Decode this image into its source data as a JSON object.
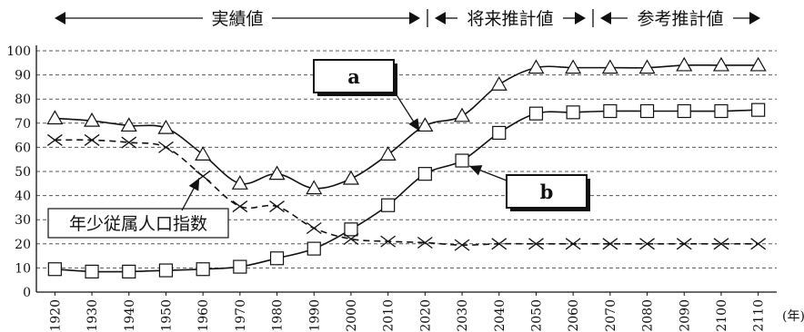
{
  "chart_data": {
    "type": "line",
    "x": [
      1920,
      1930,
      1940,
      1950,
      1960,
      1970,
      1980,
      1990,
      2000,
      2010,
      2020,
      2030,
      2040,
      2050,
      2060,
      2070,
      2080,
      2090,
      2100,
      2110
    ],
    "xlabel": "(年)",
    "ylim": [
      0,
      100
    ],
    "yticks": [
      0,
      10,
      20,
      30,
      40,
      50,
      60,
      70,
      80,
      90,
      100
    ],
    "grid": "horizontal dashed",
    "periods": [
      "実績値",
      "将来推計値",
      "参考推計値"
    ],
    "series": [
      {
        "name": "a",
        "marker": "triangle",
        "style": "solid",
        "values": [
          72,
          71,
          69,
          68,
          57,
          45,
          49,
          43,
          47,
          57,
          69,
          73,
          86,
          93,
          93,
          93,
          93,
          94,
          94,
          94
        ]
      },
      {
        "name": "b",
        "marker": "square",
        "style": "solid",
        "values": [
          9.5,
          8.5,
          8.5,
          9,
          9.5,
          10.5,
          14,
          18,
          26,
          36,
          49,
          54.5,
          66,
          74,
          74.5,
          75,
          75,
          75,
          75,
          75.5
        ]
      },
      {
        "name": "年少従属人口指数",
        "marker": "cross",
        "style": "dashed",
        "values": [
          63,
          63,
          62,
          60,
          48,
          35.5,
          35.5,
          26.5,
          22,
          21,
          20.5,
          19.5,
          20,
          20,
          20,
          20,
          20,
          20,
          20,
          20
        ]
      }
    ]
  }
}
